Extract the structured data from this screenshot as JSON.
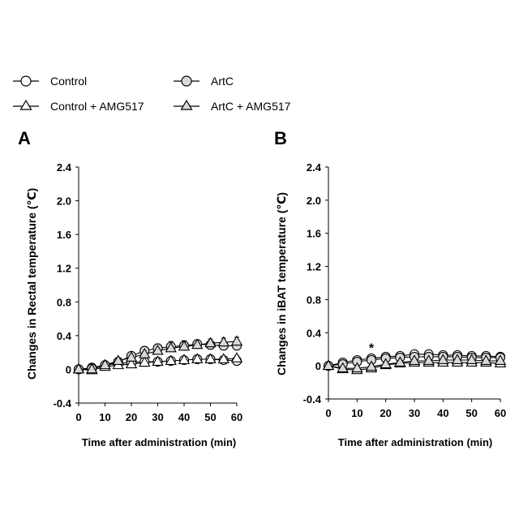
{
  "legend": {
    "items": [
      {
        "label": "Control",
        "marker": "circle",
        "fill": "#ffffff"
      },
      {
        "label": "ArtC",
        "marker": "circle",
        "fill": "#d9d9d9"
      },
      {
        "label": "Control + AMG517",
        "marker": "triangle",
        "fill": "#ffffff"
      },
      {
        "label": "ArtC + AMG517",
        "marker": "triangle",
        "fill": "#d9d9d9"
      }
    ]
  },
  "colors": {
    "line": "#000000",
    "open_fill": "#ffffff",
    "grey_fill": "#d9d9d9"
  },
  "chart_data": [
    {
      "type": "line",
      "panel_label": "A",
      "xlabel": "Time after administration (min)",
      "ylabel": "Changes in Rectal temperature (℃)",
      "xlim": [
        0,
        60
      ],
      "ylim": [
        -0.4,
        2.4
      ],
      "xticks": [
        0,
        10,
        20,
        30,
        40,
        50,
        60
      ],
      "yticks": [
        -0.4,
        0,
        0.4,
        0.8,
        1.2,
        1.6,
        2.0,
        2.4
      ],
      "ytick_labels": [
        "-0.4",
        "0",
        "0.4",
        "0.8",
        "1.2",
        "1.6",
        "2.0",
        "2.4"
      ],
      "x": [
        0,
        5,
        10,
        15,
        20,
        25,
        30,
        35,
        40,
        45,
        50,
        55,
        60
      ],
      "series": [
        {
          "name": "Control",
          "marker": "circle",
          "fill": "#ffffff",
          "values": [
            0,
            0.02,
            0.05,
            0.07,
            0.08,
            0.09,
            0.09,
            0.1,
            0.11,
            0.12,
            0.12,
            0.11,
            0.1
          ],
          "errors": [
            0,
            0.01,
            0.02,
            0.02,
            0.02,
            0.02,
            0.02,
            0.02,
            0.02,
            0.03,
            0.03,
            0.03,
            0.03
          ]
        },
        {
          "name": "ArtC",
          "marker": "circle",
          "fill": "#d9d9d9",
          "values": [
            0,
            0.01,
            0.05,
            0.09,
            0.16,
            0.22,
            0.25,
            0.27,
            0.28,
            0.3,
            0.29,
            0.28,
            0.28
          ],
          "errors": [
            0,
            0.01,
            0.02,
            0.03,
            0.04,
            0.05,
            0.05,
            0.06,
            0.06,
            0.05,
            0.05,
            0.05,
            0.05
          ]
        },
        {
          "name": "Control + AMG517",
          "marker": "triangle",
          "fill": "#ffffff",
          "values": [
            0,
            -0.01,
            0.03,
            0.05,
            0.06,
            0.08,
            0.09,
            0.1,
            0.11,
            0.12,
            0.12,
            0.12,
            0.13
          ],
          "errors": [
            0,
            0.01,
            0.02,
            0.02,
            0.02,
            0.02,
            0.02,
            0.02,
            0.03,
            0.03,
            0.03,
            0.03,
            0.03
          ]
        },
        {
          "name": "ArtC + AMG517",
          "marker": "triangle",
          "fill": "#d9d9d9",
          "values": [
            0,
            0.0,
            0.05,
            0.1,
            0.14,
            0.18,
            0.22,
            0.25,
            0.27,
            0.29,
            0.31,
            0.32,
            0.33
          ],
          "errors": [
            0,
            0.01,
            0.02,
            0.03,
            0.04,
            0.04,
            0.05,
            0.05,
            0.05,
            0.05,
            0.05,
            0.05,
            0.05
          ]
        }
      ],
      "annotations": []
    },
    {
      "type": "line",
      "panel_label": "B",
      "xlabel": "Time after administration (min)",
      "ylabel": "Changes in iBAT temperature (℃)",
      "xlim": [
        0,
        60
      ],
      "ylim": [
        -0.4,
        2.4
      ],
      "xticks": [
        0,
        10,
        20,
        30,
        40,
        50,
        60
      ],
      "yticks": [
        -0.4,
        0,
        0.4,
        0.8,
        1.2,
        1.6,
        2.0,
        2.4
      ],
      "ytick_labels": [
        "-0.4",
        "0",
        "0.4",
        "0.8",
        "1.2",
        "1.6",
        "2.0",
        "2.4"
      ],
      "x": [
        0,
        5,
        10,
        15,
        20,
        25,
        30,
        35,
        40,
        45,
        50,
        55,
        60
      ],
      "series": [
        {
          "name": "Control",
          "marker": "circle",
          "fill": "#ffffff",
          "values": [
            0,
            0.04,
            0.07,
            0.09,
            0.11,
            0.12,
            0.14,
            0.14,
            0.13,
            0.13,
            0.12,
            0.12,
            0.11
          ],
          "errors": [
            0,
            0.01,
            0.02,
            0.02,
            0.02,
            0.02,
            0.02,
            0.02,
            0.02,
            0.02,
            0.02,
            0.02,
            0.02
          ]
        },
        {
          "name": "ArtC",
          "marker": "circle",
          "fill": "#d9d9d9",
          "values": [
            0,
            0.02,
            0.05,
            0.07,
            0.09,
            0.1,
            0.11,
            0.11,
            0.11,
            0.11,
            0.1,
            0.1,
            0.1
          ],
          "errors": [
            0,
            0.01,
            0.02,
            0.02,
            0.02,
            0.02,
            0.02,
            0.02,
            0.02,
            0.02,
            0.02,
            0.02,
            0.02
          ]
        },
        {
          "name": "Control + AMG517",
          "marker": "triangle",
          "fill": "#ffffff",
          "values": [
            0,
            -0.04,
            -0.05,
            -0.03,
            0.01,
            0.03,
            0.04,
            0.04,
            0.04,
            0.04,
            0.04,
            0.04,
            0.03
          ],
          "errors": [
            0,
            0.01,
            0.02,
            0.02,
            0.02,
            0.02,
            0.02,
            0.02,
            0.02,
            0.02,
            0.02,
            0.02,
            0.02
          ]
        },
        {
          "name": "ArtC + AMG517",
          "marker": "triangle",
          "fill": "#d9d9d9",
          "values": [
            0,
            -0.03,
            -0.03,
            -0.01,
            0.02,
            0.04,
            0.06,
            0.06,
            0.07,
            0.07,
            0.07,
            0.06,
            0.06
          ],
          "errors": [
            0,
            0.01,
            0.02,
            0.02,
            0.02,
            0.02,
            0.02,
            0.02,
            0.02,
            0.02,
            0.02,
            0.02,
            0.02
          ]
        }
      ],
      "annotations": [
        {
          "text": "*",
          "x": 15,
          "y": 0.22
        }
      ]
    }
  ]
}
